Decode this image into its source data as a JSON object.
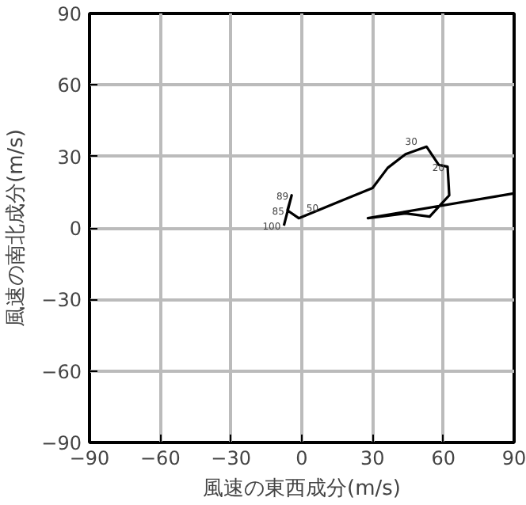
{
  "chart_data": {
    "type": "line",
    "xlabel": "風速の東西成分(m/s)",
    "ylabel": "風速の南北成分(m/s)",
    "x": [
      -7.6,
      -4.3,
      -6.1,
      -1.3,
      30.0,
      36.4,
      44.0,
      52.9,
      58.0,
      61.8,
      62.5,
      54.2,
      44.0,
      28.0,
      89.8
    ],
    "series": [
      {
        "color": "#000000",
        "values": [
          1.0,
          13.7,
          7.4,
          4.1,
          16.8,
          25.2,
          31.0,
          34.1,
          26.5,
          25.7,
          13.7,
          4.8,
          6.1,
          4.1,
          14.5
        ]
      }
    ],
    "xlim": [
      -90,
      90
    ],
    "ylim": [
      -90,
      90
    ],
    "xticks": [
      {
        "value": -90,
        "label": "−90"
      },
      {
        "value": -60,
        "label": "−60"
      },
      {
        "value": -30,
        "label": "−30"
      },
      0,
      30,
      60,
      90
    ],
    "yticks": [
      {
        "value": -90,
        "label": "−90"
      },
      {
        "value": -60,
        "label": "−60"
      },
      {
        "value": -30,
        "label": "−30"
      },
      0,
      30,
      60,
      90
    ],
    "grid": true,
    "marker": "none",
    "line_style": "solid",
    "annotations": [
      {
        "text": "100",
        "x": -7.6,
        "y": 1.0
      },
      {
        "text": "89",
        "x": -4.3,
        "y": 13.7
      },
      {
        "text": "85",
        "x": -6.1,
        "y": 7.4
      },
      {
        "text": "50",
        "x": 8.4,
        "y": 8.6
      },
      {
        "text": "30",
        "x": 50.3,
        "y": 36.6
      },
      {
        "text": "20",
        "x": 61.8,
        "y": 25.7
      }
    ]
  }
}
